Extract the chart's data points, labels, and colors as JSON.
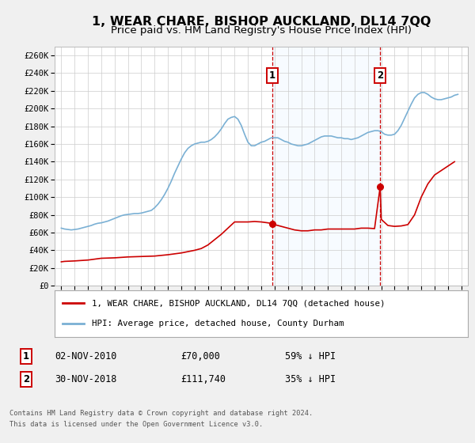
{
  "title": "1, WEAR CHARE, BISHOP AUCKLAND, DL14 7QQ",
  "subtitle": "Price paid vs. HM Land Registry's House Price Index (HPI)",
  "title_fontsize": 11.5,
  "subtitle_fontsize": 9.5,
  "ylabel_ticks": [
    "£0",
    "£20K",
    "£40K",
    "£60K",
    "£80K",
    "£100K",
    "£120K",
    "£140K",
    "£160K",
    "£180K",
    "£200K",
    "£220K",
    "£240K",
    "£260K"
  ],
  "ytick_values": [
    0,
    20000,
    40000,
    60000,
    80000,
    100000,
    120000,
    140000,
    160000,
    180000,
    200000,
    220000,
    240000,
    260000
  ],
  "ylim": [
    0,
    270000
  ],
  "xlim_start": 1994.5,
  "xlim_end": 2025.5,
  "fig_bg_color": "#f0f0f0",
  "plot_bg_color": "#ffffff",
  "grid_color": "#cccccc",
  "red_line_color": "#cc0000",
  "blue_line_color": "#7ab0d4",
  "shade_color": "#ddeeff",
  "dashed_line_color": "#cc0000",
  "marker1_x": 2010.84,
  "marker1_y": 70000,
  "marker2_x": 2018.92,
  "marker2_y": 111740,
  "annotation1_label": "1",
  "annotation2_label": "2",
  "legend_line1": "1, WEAR CHARE, BISHOP AUCKLAND, DL14 7QQ (detached house)",
  "legend_line2": "HPI: Average price, detached house, County Durham",
  "table_row1_num": "1",
  "table_row1_date": "02-NOV-2010",
  "table_row1_price": "£70,000",
  "table_row1_hpi": "59% ↓ HPI",
  "table_row2_num": "2",
  "table_row2_date": "30-NOV-2018",
  "table_row2_price": "£111,740",
  "table_row2_hpi": "35% ↓ HPI",
  "footer_line1": "Contains HM Land Registry data © Crown copyright and database right 2024.",
  "footer_line2": "This data is licensed under the Open Government Licence v3.0.",
  "hpi_data_x": [
    1995.0,
    1995.25,
    1995.5,
    1995.75,
    1996.0,
    1996.25,
    1996.5,
    1996.75,
    1997.0,
    1997.25,
    1997.5,
    1997.75,
    1998.0,
    1998.25,
    1998.5,
    1998.75,
    1999.0,
    1999.25,
    1999.5,
    1999.75,
    2000.0,
    2000.25,
    2000.5,
    2000.75,
    2001.0,
    2001.25,
    2001.5,
    2001.75,
    2002.0,
    2002.25,
    2002.5,
    2002.75,
    2003.0,
    2003.25,
    2003.5,
    2003.75,
    2004.0,
    2004.25,
    2004.5,
    2004.75,
    2005.0,
    2005.25,
    2005.5,
    2005.75,
    2006.0,
    2006.25,
    2006.5,
    2006.75,
    2007.0,
    2007.25,
    2007.5,
    2007.75,
    2008.0,
    2008.25,
    2008.5,
    2008.75,
    2009.0,
    2009.25,
    2009.5,
    2009.75,
    2010.0,
    2010.25,
    2010.5,
    2010.75,
    2011.0,
    2011.25,
    2011.5,
    2011.75,
    2012.0,
    2012.25,
    2012.5,
    2012.75,
    2013.0,
    2013.25,
    2013.5,
    2013.75,
    2014.0,
    2014.25,
    2014.5,
    2014.75,
    2015.0,
    2015.25,
    2015.5,
    2015.75,
    2016.0,
    2016.25,
    2016.5,
    2016.75,
    2017.0,
    2017.25,
    2017.5,
    2017.75,
    2018.0,
    2018.25,
    2018.5,
    2018.75,
    2019.0,
    2019.25,
    2019.5,
    2019.75,
    2020.0,
    2020.25,
    2020.5,
    2020.75,
    2021.0,
    2021.25,
    2021.5,
    2021.75,
    2022.0,
    2022.25,
    2022.5,
    2022.75,
    2023.0,
    2023.25,
    2023.5,
    2023.75,
    2024.0,
    2024.25,
    2024.5,
    2024.75
  ],
  "hpi_data_y": [
    65000,
    64000,
    63500,
    63000,
    63500,
    64000,
    65000,
    66000,
    67000,
    68000,
    69500,
    70500,
    71000,
    72000,
    73000,
    74500,
    76000,
    77500,
    79000,
    80000,
    80500,
    81000,
    81500,
    81500,
    82000,
    83000,
    84000,
    85000,
    88000,
    92000,
    97000,
    103000,
    110000,
    118000,
    127000,
    135000,
    143000,
    150000,
    155000,
    158000,
    160000,
    161000,
    162000,
    162000,
    163000,
    165000,
    168000,
    172000,
    177000,
    183000,
    188000,
    190000,
    191000,
    188000,
    181000,
    171000,
    162000,
    158000,
    158000,
    160000,
    162000,
    163000,
    165000,
    167000,
    167000,
    167000,
    165000,
    163000,
    162000,
    160000,
    159000,
    158000,
    158000,
    159000,
    160000,
    162000,
    164000,
    166000,
    168000,
    169000,
    169000,
    169000,
    168000,
    167000,
    167000,
    166000,
    166000,
    165000,
    166000,
    167000,
    169000,
    171000,
    173000,
    174000,
    175000,
    175000,
    174000,
    171000,
    170000,
    170000,
    171000,
    175000,
    181000,
    189000,
    197000,
    205000,
    212000,
    216000,
    218000,
    218000,
    216000,
    213000,
    211000,
    210000,
    210000,
    211000,
    212000,
    213000,
    215000,
    216000
  ],
  "price_data_x": [
    1995.0,
    1995.25,
    1996.0,
    1996.5,
    1997.0,
    1997.5,
    1998.0,
    1999.0,
    2000.0,
    2001.0,
    2002.0,
    2003.0,
    2003.5,
    2004.0,
    2004.5,
    2005.0,
    2005.5,
    2006.0,
    2006.5,
    2007.0,
    2007.5,
    2008.0,
    2009.0,
    2009.5,
    2010.0,
    2010.5,
    2010.84,
    2011.0,
    2011.5,
    2012.0,
    2012.5,
    2013.0,
    2013.5,
    2014.0,
    2014.5,
    2015.0,
    2015.5,
    2016.0,
    2016.5,
    2017.0,
    2017.5,
    2018.0,
    2018.5,
    2018.92,
    2019.0,
    2019.5,
    2020.0,
    2020.5,
    2021.0,
    2021.5,
    2022.0,
    2022.5,
    2023.0,
    2023.5,
    2024.0,
    2024.5
  ],
  "price_data_y": [
    27000,
    27500,
    28000,
    28500,
    29000,
    30000,
    31000,
    31500,
    32500,
    33000,
    33500,
    35000,
    36000,
    37000,
    38500,
    40000,
    42000,
    46000,
    52000,
    58000,
    65000,
    72000,
    72000,
    72500,
    72000,
    71000,
    70000,
    69000,
    67000,
    65000,
    63000,
    62000,
    62000,
    63000,
    63000,
    64000,
    64000,
    64000,
    64000,
    64000,
    65000,
    65000,
    64500,
    111740,
    75000,
    68000,
    67000,
    67500,
    69000,
    80000,
    100000,
    115000,
    125000,
    130000,
    135000,
    140000
  ]
}
